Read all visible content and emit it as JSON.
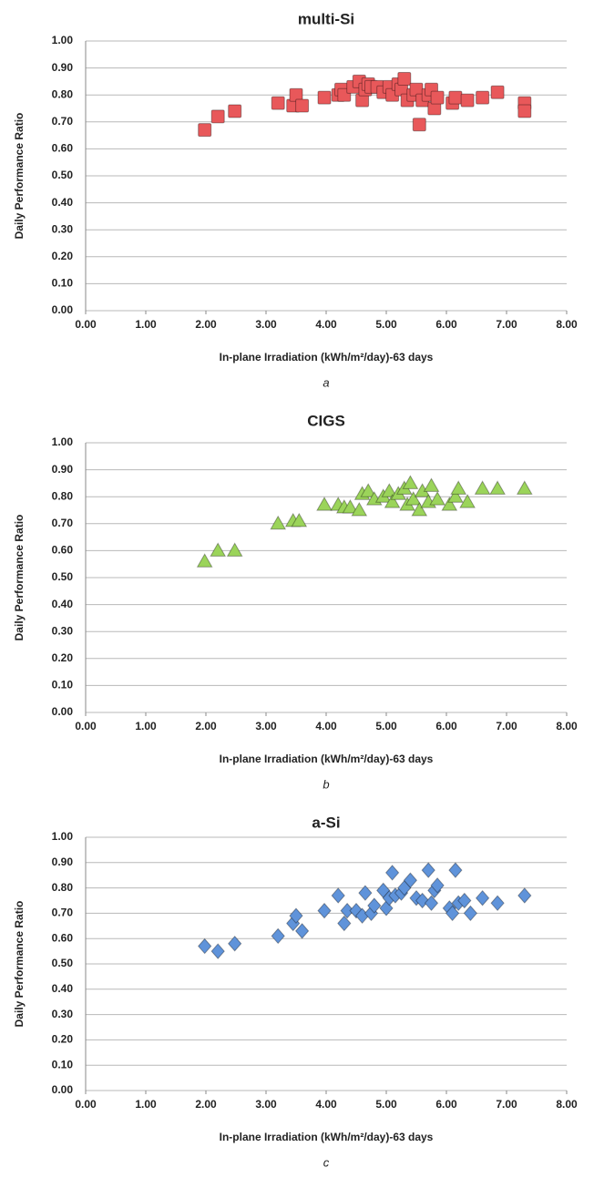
{
  "chart_data": [
    {
      "type": "scatter",
      "title": "multi-Si",
      "xlabel": "In-plane Irradiation (kWh/m²/day)-63 days",
      "ylabel": "Daily Performance Ratio",
      "caption": "a",
      "marker": "square",
      "color": "#e8585a",
      "grid": true,
      "x": [
        1.98,
        2.2,
        2.48,
        3.2,
        3.45,
        3.5,
        3.6,
        3.97,
        4.2,
        4.25,
        4.3,
        4.45,
        4.55,
        4.6,
        4.65,
        4.7,
        4.75,
        4.85,
        4.95,
        5.05,
        5.1,
        5.2,
        5.25,
        5.3,
        5.35,
        5.45,
        5.5,
        5.55,
        5.6,
        5.7,
        5.75,
        5.8,
        5.85,
        6.1,
        6.15,
        6.35,
        6.6,
        6.85,
        7.3,
        7.3
      ],
      "y": [
        0.67,
        0.72,
        0.74,
        0.77,
        0.76,
        0.8,
        0.76,
        0.79,
        0.8,
        0.82,
        0.8,
        0.83,
        0.85,
        0.78,
        0.82,
        0.84,
        0.83,
        0.83,
        0.81,
        0.83,
        0.8,
        0.84,
        0.82,
        0.86,
        0.78,
        0.8,
        0.82,
        0.69,
        0.78,
        0.8,
        0.82,
        0.75,
        0.79,
        0.77,
        0.79,
        0.78,
        0.79,
        0.81,
        0.77,
        0.74
      ],
      "xlim": [
        0,
        8
      ],
      "ylim": [
        0,
        1
      ],
      "xticks": [
        {
          "value": 0,
          "label": "0.00"
        },
        {
          "value": 1,
          "label": "1.00"
        },
        {
          "value": 2,
          "label": "2.00"
        },
        {
          "value": 3,
          "label": "3.00"
        },
        {
          "value": 4,
          "label": "4.00"
        },
        {
          "value": 5,
          "label": "5.00"
        },
        {
          "value": 6,
          "label": "6.00"
        },
        {
          "value": 7,
          "label": "7.00"
        },
        {
          "value": 8,
          "label": "8.00"
        }
      ],
      "yticks": [
        {
          "value": 0,
          "label": "0.00"
        },
        {
          "value": 0.1,
          "label": "0.10"
        },
        {
          "value": 0.2,
          "label": "0.20"
        },
        {
          "value": 0.3,
          "label": "0.30"
        },
        {
          "value": 0.4,
          "label": "0.40"
        },
        {
          "value": 0.5,
          "label": "0.50"
        },
        {
          "value": 0.6,
          "label": "0.60"
        },
        {
          "value": 0.7,
          "label": "0.70"
        },
        {
          "value": 0.8,
          "label": "0.80"
        },
        {
          "value": 0.9,
          "label": "0.90"
        },
        {
          "value": 1,
          "label": "1.00"
        }
      ]
    },
    {
      "type": "scatter",
      "title": "CIGS",
      "xlabel": "In-plane Irradiation (kWh/m²/day)-63 days",
      "ylabel": "Daily Performance Ratio",
      "caption": "b",
      "marker": "triangle",
      "color": "#9bd45a",
      "grid": true,
      "x": [
        1.98,
        2.2,
        2.48,
        3.2,
        3.45,
        3.55,
        3.97,
        4.2,
        4.3,
        4.4,
        4.55,
        4.6,
        4.7,
        4.8,
        4.95,
        5.05,
        5.1,
        5.2,
        5.3,
        5.35,
        5.4,
        5.45,
        5.55,
        5.6,
        5.7,
        5.75,
        5.85,
        6.05,
        6.15,
        6.2,
        6.35,
        6.6,
        6.85,
        7.3
      ],
      "y": [
        0.56,
        0.6,
        0.6,
        0.7,
        0.71,
        0.71,
        0.77,
        0.77,
        0.76,
        0.76,
        0.75,
        0.81,
        0.82,
        0.79,
        0.8,
        0.82,
        0.78,
        0.81,
        0.83,
        0.77,
        0.85,
        0.79,
        0.75,
        0.82,
        0.78,
        0.84,
        0.79,
        0.77,
        0.8,
        0.83,
        0.78,
        0.83,
        0.83,
        0.83
      ],
      "xlim": [
        0,
        8
      ],
      "ylim": [
        0,
        1
      ],
      "xticks": [
        {
          "value": 0,
          "label": "0.00"
        },
        {
          "value": 1,
          "label": "1.00"
        },
        {
          "value": 2,
          "label": "2.00"
        },
        {
          "value": 3,
          "label": "3.00"
        },
        {
          "value": 4,
          "label": "4.00"
        },
        {
          "value": 5,
          "label": "5.00"
        },
        {
          "value": 6,
          "label": "6.00"
        },
        {
          "value": 7,
          "label": "7.00"
        },
        {
          "value": 8,
          "label": "8.00"
        }
      ],
      "yticks": [
        {
          "value": 0,
          "label": "0.00"
        },
        {
          "value": 0.1,
          "label": "0.10"
        },
        {
          "value": 0.2,
          "label": "0.20"
        },
        {
          "value": 0.3,
          "label": "0.30"
        },
        {
          "value": 0.4,
          "label": "0.40"
        },
        {
          "value": 0.5,
          "label": "0.50"
        },
        {
          "value": 0.6,
          "label": "0.60"
        },
        {
          "value": 0.7,
          "label": "0.70"
        },
        {
          "value": 0.8,
          "label": "0.80"
        },
        {
          "value": 0.9,
          "label": "0.90"
        },
        {
          "value": 1,
          "label": "1.00"
        }
      ]
    },
    {
      "type": "scatter",
      "title": "a-Si",
      "xlabel": "In-plane Irradiation (kWh/m²/day)-63 days",
      "ylabel": "Daily Performance Ratio",
      "caption": "c",
      "marker": "diamond",
      "color": "#5f93da",
      "grid": true,
      "x": [
        1.98,
        2.2,
        2.48,
        3.2,
        3.45,
        3.5,
        3.6,
        3.97,
        4.2,
        4.3,
        4.35,
        4.5,
        4.6,
        4.65,
        4.75,
        4.8,
        4.95,
        5.0,
        5.05,
        5.1,
        5.15,
        5.25,
        5.3,
        5.4,
        5.5,
        5.6,
        5.7,
        5.75,
        5.8,
        5.85,
        6.05,
        6.1,
        6.15,
        6.2,
        6.3,
        6.4,
        6.6,
        6.85,
        7.3
      ],
      "y": [
        0.57,
        0.55,
        0.58,
        0.61,
        0.66,
        0.69,
        0.63,
        0.71,
        0.77,
        0.66,
        0.71,
        0.71,
        0.69,
        0.78,
        0.7,
        0.73,
        0.79,
        0.72,
        0.76,
        0.86,
        0.77,
        0.78,
        0.8,
        0.83,
        0.76,
        0.75,
        0.87,
        0.74,
        0.79,
        0.81,
        0.72,
        0.7,
        0.87,
        0.74,
        0.75,
        0.7,
        0.76,
        0.74,
        0.77
      ],
      "xlim": [
        0,
        8
      ],
      "ylim": [
        0,
        1
      ],
      "xticks": [
        {
          "value": 0,
          "label": "0.00"
        },
        {
          "value": 1,
          "label": "1.00"
        },
        {
          "value": 2,
          "label": "2.00"
        },
        {
          "value": 3,
          "label": "3.00"
        },
        {
          "value": 4,
          "label": "4.00"
        },
        {
          "value": 5,
          "label": "5.00"
        },
        {
          "value": 6,
          "label": "6.00"
        },
        {
          "value": 7,
          "label": "7.00"
        },
        {
          "value": 8,
          "label": "8.00"
        }
      ],
      "yticks": [
        {
          "value": 0,
          "label": "0.00"
        },
        {
          "value": 0.1,
          "label": "0.10"
        },
        {
          "value": 0.2,
          "label": "0.20"
        },
        {
          "value": 0.3,
          "label": "0.30"
        },
        {
          "value": 0.4,
          "label": "0.40"
        },
        {
          "value": 0.5,
          "label": "0.50"
        },
        {
          "value": 0.6,
          "label": "0.60"
        },
        {
          "value": 0.7,
          "label": "0.70"
        },
        {
          "value": 0.8,
          "label": "0.80"
        },
        {
          "value": 0.9,
          "label": "0.90"
        },
        {
          "value": 1,
          "label": "1.00"
        }
      ]
    }
  ]
}
